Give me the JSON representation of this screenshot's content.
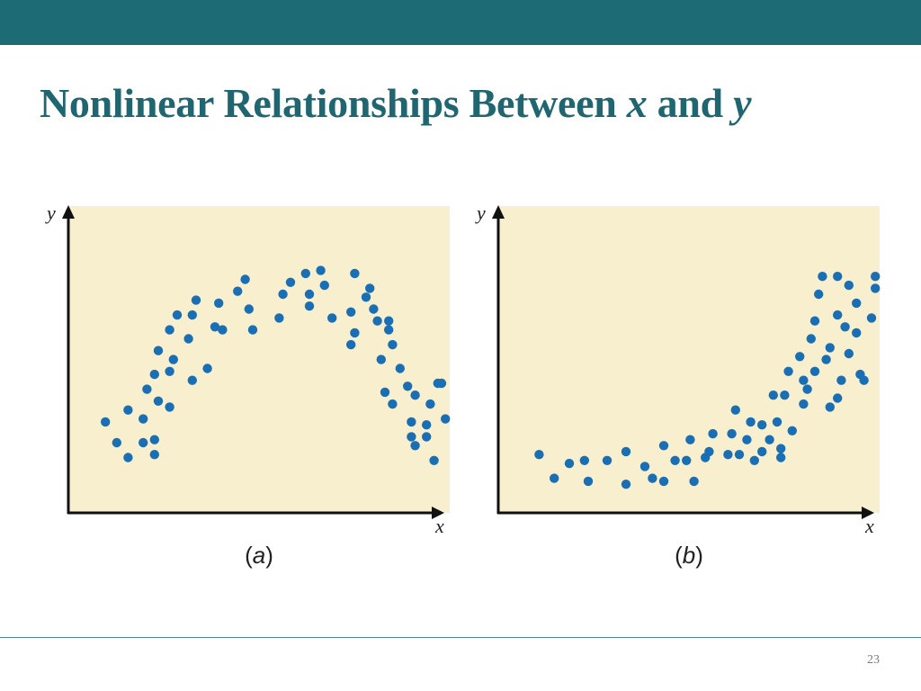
{
  "slide": {
    "title_main": "Nonlinear Relationships Between",
    "title_x": "x",
    "title_and": "and",
    "title_y": "y",
    "page_number": "23"
  },
  "colors": {
    "header_bar": "#1c6b75",
    "title": "#1f6670",
    "plot_background": "#f8efcf",
    "point": "#1a6fb4",
    "axis": "#111111"
  },
  "chart_data": [
    {
      "type": "scatter",
      "panel_label_pre": "(",
      "panel_label_letter": "a",
      "panel_label_post": ")",
      "xlabel": "x",
      "ylabel": "y",
      "xlim": [
        0,
        100
      ],
      "ylim": [
        0,
        100
      ],
      "grid": false,
      "points": [
        [
          6,
          27
        ],
        [
          9,
          20
        ],
        [
          12,
          15
        ],
        [
          12,
          31
        ],
        [
          16,
          28
        ],
        [
          16,
          20
        ],
        [
          17,
          38
        ],
        [
          19,
          21
        ],
        [
          19,
          16
        ],
        [
          19,
          43
        ],
        [
          20,
          34
        ],
        [
          20,
          51
        ],
        [
          23,
          44
        ],
        [
          23,
          32
        ],
        [
          23,
          58
        ],
        [
          24,
          48
        ],
        [
          25,
          63
        ],
        [
          28,
          55
        ],
        [
          29,
          41
        ],
        [
          29,
          63
        ],
        [
          30,
          68
        ],
        [
          33,
          45
        ],
        [
          35,
          59
        ],
        [
          36,
          67
        ],
        [
          37,
          58
        ],
        [
          41,
          71
        ],
        [
          43,
          75
        ],
        [
          44,
          65
        ],
        [
          45,
          58
        ],
        [
          52,
          62
        ],
        [
          53,
          70
        ],
        [
          55,
          74
        ],
        [
          60,
          66
        ],
        [
          59,
          77
        ],
        [
          60,
          70
        ],
        [
          63,
          78
        ],
        [
          64,
          73
        ],
        [
          66,
          62
        ],
        [
          71,
          64
        ],
        [
          72,
          77
        ],
        [
          71,
          53
        ],
        [
          72,
          57
        ],
        [
          75,
          69
        ],
        [
          77,
          65
        ],
        [
          78,
          61
        ],
        [
          76,
          72
        ],
        [
          79,
          48
        ],
        [
          80,
          37
        ],
        [
          81,
          58
        ],
        [
          81,
          61
        ],
        [
          82,
          53
        ],
        [
          82,
          33
        ],
        [
          84,
          45
        ],
        [
          86,
          39
        ],
        [
          87,
          27
        ],
        [
          87,
          22
        ],
        [
          88,
          36
        ],
        [
          88,
          19
        ],
        [
          91,
          22
        ],
        [
          91,
          26
        ],
        [
          92,
          33
        ],
        [
          93,
          14
        ],
        [
          95,
          40
        ],
        [
          94,
          40
        ],
        [
          96,
          28
        ]
      ]
    },
    {
      "type": "scatter",
      "panel_label_pre": "(",
      "panel_label_letter": "b",
      "panel_label_post": ")",
      "xlabel": "x",
      "ylabel": "y",
      "xlim": [
        0,
        100
      ],
      "ylim": [
        0,
        100
      ],
      "grid": false,
      "points": [
        [
          7,
          16
        ],
        [
          11,
          8
        ],
        [
          15,
          13
        ],
        [
          19,
          14
        ],
        [
          20,
          7
        ],
        [
          25,
          14
        ],
        [
          30,
          6
        ],
        [
          30,
          17
        ],
        [
          35,
          12
        ],
        [
          37,
          8
        ],
        [
          40,
          19
        ],
        [
          40,
          7
        ],
        [
          43,
          14
        ],
        [
          46,
          14
        ],
        [
          47,
          21
        ],
        [
          48,
          7
        ],
        [
          51,
          15
        ],
        [
          52,
          17
        ],
        [
          53,
          23
        ],
        [
          57,
          16
        ],
        [
          58,
          23
        ],
        [
          59,
          31
        ],
        [
          60,
          16
        ],
        [
          62,
          21
        ],
        [
          63,
          27
        ],
        [
          64,
          14
        ],
        [
          66,
          17
        ],
        [
          66,
          26
        ],
        [
          68,
          21
        ],
        [
          69,
          36
        ],
        [
          70,
          27
        ],
        [
          71,
          15
        ],
        [
          71,
          18
        ],
        [
          72,
          36
        ],
        [
          73,
          44
        ],
        [
          74,
          24
        ],
        [
          76,
          49
        ],
        [
          77,
          33
        ],
        [
          77,
          41
        ],
        [
          78,
          38
        ],
        [
          79,
          55
        ],
        [
          80,
          44
        ],
        [
          80,
          61
        ],
        [
          81,
          70
        ],
        [
          82,
          76
        ],
        [
          83,
          48
        ],
        [
          84,
          52
        ],
        [
          84,
          32
        ],
        [
          86,
          63
        ],
        [
          86,
          35
        ],
        [
          86,
          76
        ],
        [
          87,
          41
        ],
        [
          88,
          59
        ],
        [
          89,
          73
        ],
        [
          89,
          50
        ],
        [
          91,
          57
        ],
        [
          91,
          67
        ],
        [
          92,
          43
        ],
        [
          93,
          41
        ],
        [
          95,
          62
        ],
        [
          96,
          72
        ],
        [
          96,
          76
        ]
      ]
    }
  ]
}
